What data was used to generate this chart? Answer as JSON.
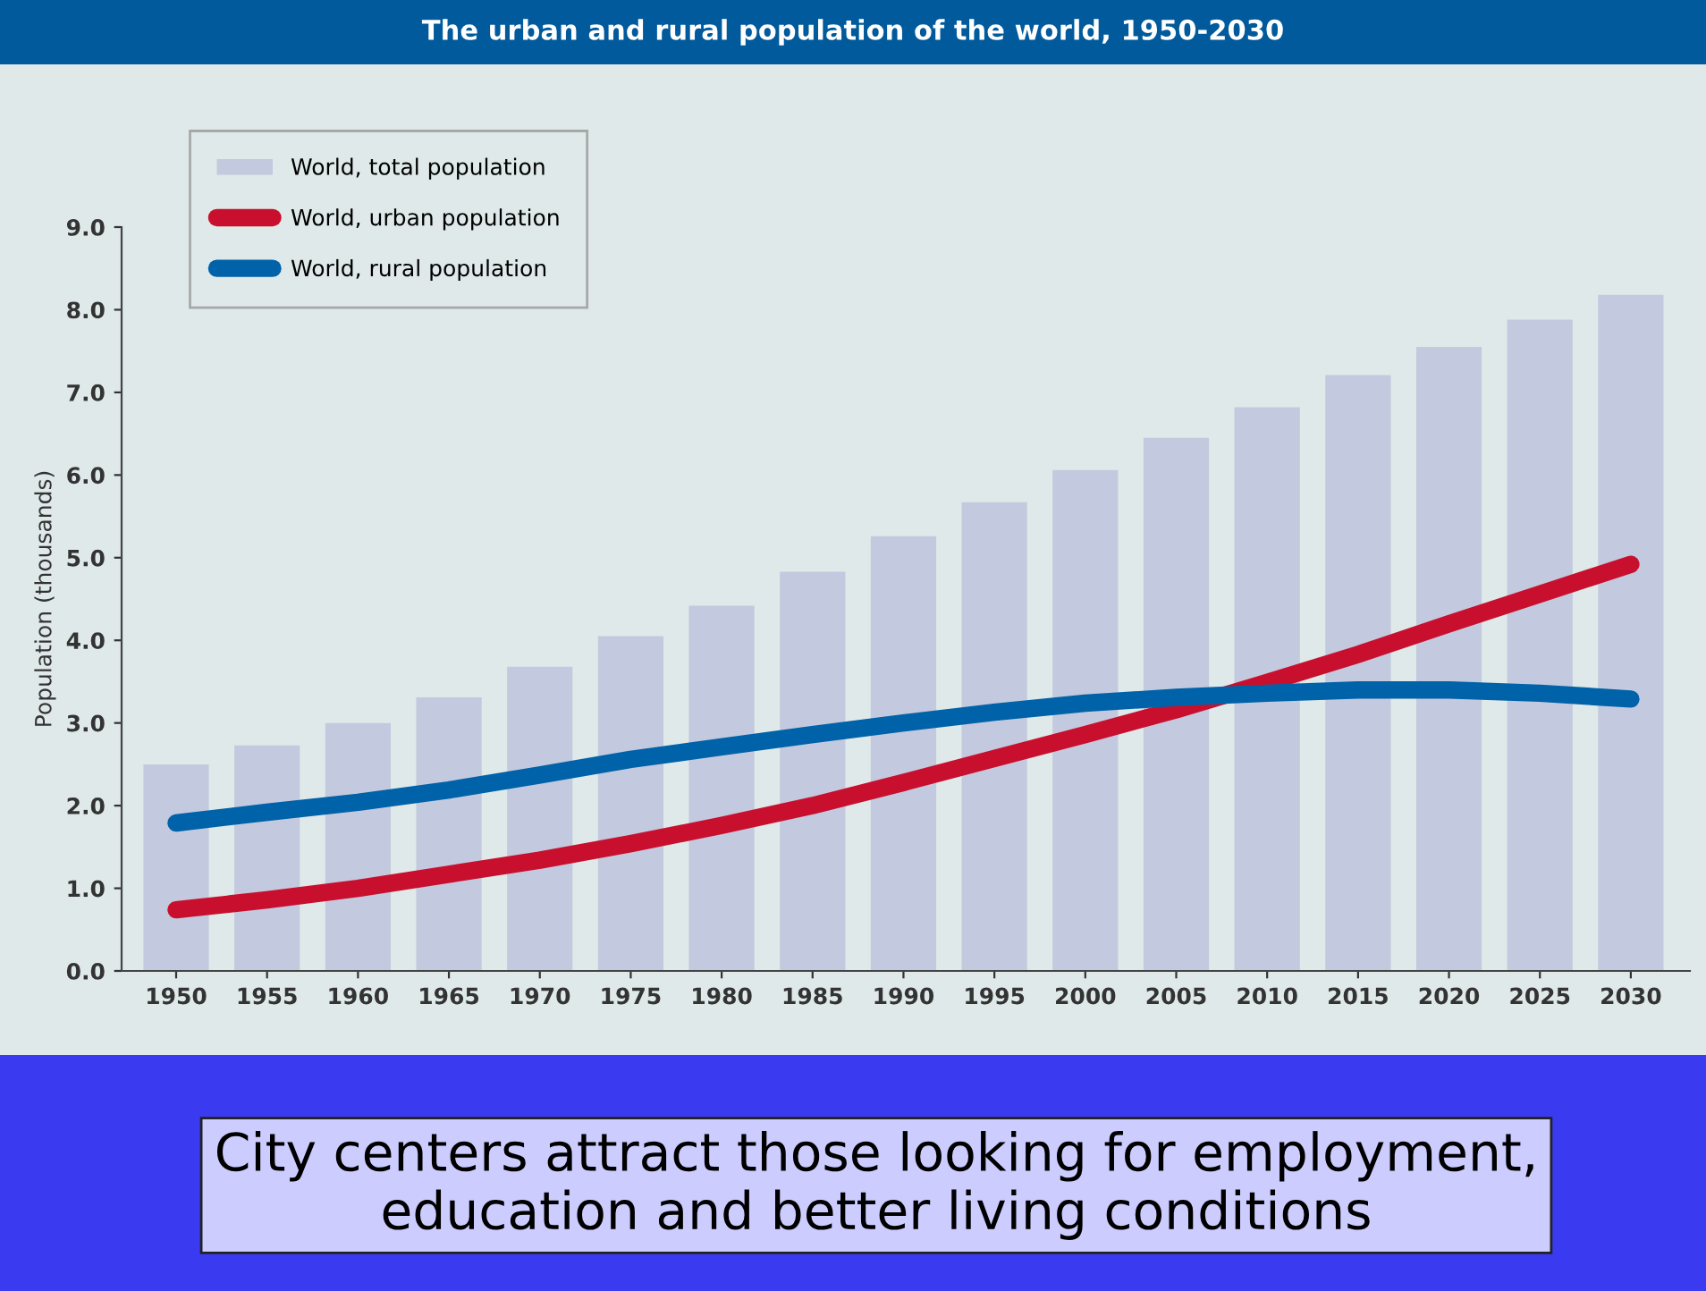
{
  "chart_data": {
    "type": "bar",
    "title": "The urban and rural population of the world, 1950-2030",
    "ylabel": "Population (thousands)",
    "categories": [
      "1950",
      "1955",
      "1960",
      "1965",
      "1970",
      "1975",
      "1980",
      "1985",
      "1990",
      "1995",
      "2000",
      "2005",
      "2010",
      "2015",
      "2020",
      "2025",
      "2030"
    ],
    "series": [
      {
        "name": "World, total population",
        "color": "#c3c9de",
        "values": [
          2.5,
          2.73,
          3.0,
          3.31,
          3.68,
          4.05,
          4.42,
          4.83,
          5.26,
          5.67,
          6.06,
          6.45,
          6.82,
          7.21,
          7.55,
          7.88,
          8.18
        ]
      },
      {
        "name": "World, urban population",
        "type": "line",
        "color": "#c8102e",
        "values": [
          0.74,
          0.86,
          1.0,
          1.17,
          1.34,
          1.54,
          1.76,
          2.0,
          2.28,
          2.57,
          2.86,
          3.16,
          3.49,
          3.83,
          4.2,
          4.56,
          4.92
        ]
      },
      {
        "name": "World, rural population",
        "type": "line",
        "color": "#0062a8",
        "values": [
          1.79,
          1.92,
          2.04,
          2.19,
          2.37,
          2.56,
          2.71,
          2.86,
          3.0,
          3.13,
          3.24,
          3.31,
          3.36,
          3.4,
          3.4,
          3.36,
          3.29
        ]
      }
    ],
    "ylim": [
      0,
      9
    ],
    "yticks": [
      {
        "value": 0,
        "label": "0.0"
      },
      {
        "value": 1,
        "label": "1.0"
      },
      {
        "value": 2,
        "label": "2.0"
      },
      {
        "value": 3,
        "label": "3.0"
      },
      {
        "value": 4,
        "label": "4.0"
      },
      {
        "value": 5,
        "label": "5.0"
      },
      {
        "value": 6,
        "label": "6.0"
      },
      {
        "value": 7,
        "label": "7.0"
      },
      {
        "value": 8,
        "label": "8.0"
      },
      {
        "value": 9,
        "label": "9.0"
      }
    ],
    "grid": false,
    "legend": "top left",
    "line_style": "solid",
    "marker": "none",
    "annotations": [
      "City centers attract those looking for employment,\neducation and better living conditions"
    ]
  }
}
